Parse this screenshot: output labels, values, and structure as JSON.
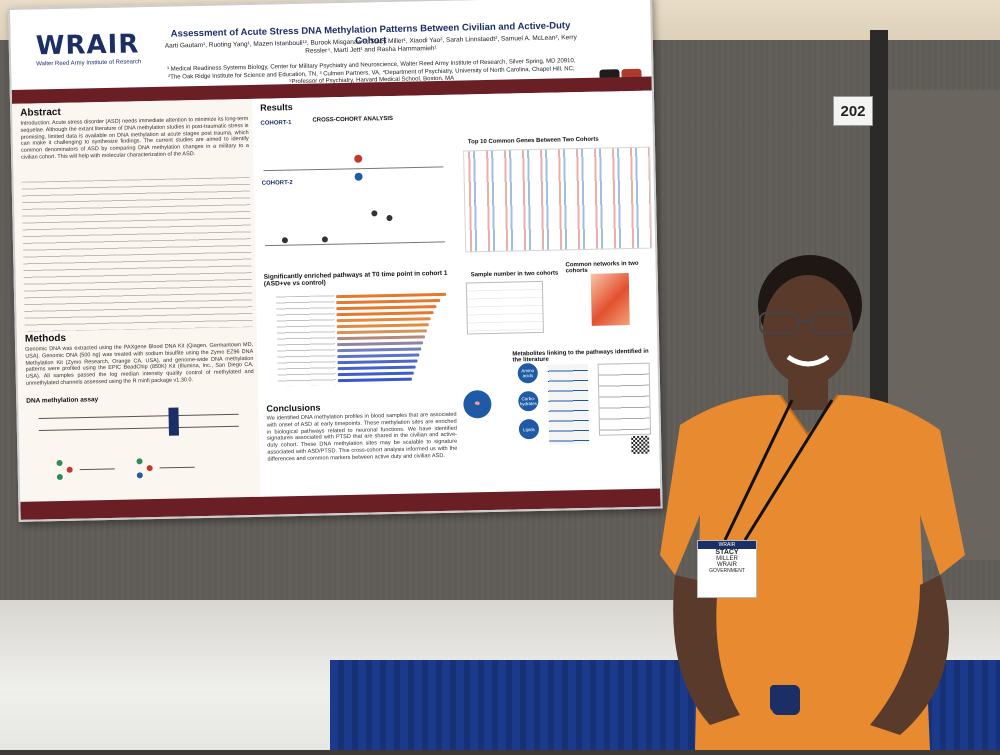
{
  "booth": {
    "number": "202"
  },
  "poster": {
    "logo": "WRAIR",
    "logo_subtitle": "Walter Reed Army Institute of Research",
    "title": "Assessment of Acute Stress DNA Methylation Patterns Between Civilian and Active-Duty Cohort",
    "authors": "Aarti Gautam¹, Ruoting Yang¹, Mazen Istanbouli¹², Burook Misganaw¹², Stacy Miller¹, Xiaodi Yao², Sarah Linnstaedt², Samuel A. McLean², Kerry Ressler⁴, Marti Jett¹ and Rasha Hammamieh¹",
    "affiliations": "¹ Medical Readiness Systems Biology, Center for Military Psychiatry and Neuroscience, Walter Reed Army Institute of Research, Silver Spring, MD 20910, ²The Oak Ridge Institute for Science and Education, TN, ³ Culmen Partners, VA, ⁴Department of Psychiatry, University of North Carolina, Chapel Hill, NC; ⁵Professor of Psychiatry, Harvard Medical School, Boston, MA",
    "sections": {
      "abstract": "Abstract",
      "methods": "Methods",
      "methylation_assay": "DNA methylation assay",
      "results": "Results",
      "cohort1": "COHORT-1",
      "cohort2": "COHORT-2",
      "cross_cohort": "CROSS-COHORT ANALYSIS",
      "top_genes": "Top 10 Common Genes Between Two Cohorts",
      "pathways": "Significantly enriched pathways at T0 time point in cohort 1 (ASD+ve vs control)",
      "sample_number": "Sample number in two cohorts",
      "networks": "Common networks in two cohorts",
      "metabolites": "Metabolites linking to the pathways identified in the literature",
      "conclusions": "Conclusions"
    },
    "abstract_text": "Introduction: Acute stress disorder (ASD) needs immediate attention to minimize its long-term sequelae. Although the extant literature of DNA methylation studies in post-traumatic stress is promising, limited data is available on DNA methylation at acute stages post trauma, which can make it challenging to synthesize findings. The current studies are aimed to identify common denominators of ASD by comparing DNA methylation changes in a military to a civilian cohort. This will help with molecular characterization of the ASD.",
    "methods_text": "Genomic DNA was extracted using the PAXgene Blood DNA Kit (Qiagen, Germantown MD, USA). Genomic DNA (500 ng) was treated with sodium bisulfite using the Zymo EZ96 DNA Methylation Kit (Zymo Research, Orange CA, USA), and genome-wide DNA methylation patterns were profiled using the EPIC BeadChip (850K) Kit (Illumina, Inc., San Diego CA, USA). All samples passed the log median intensity quality control of methylated and unmethylated channels assessed using the R minfi package v1.30.0.",
    "conclusions_text": "We identified DNA methylation profiles in blood samples that are associated with onset of ASD at early timepoints. These methylation sites are enriched in biological pathways related to neuronal functions. We have identified signatures associated with PTSD that are shared in the civilian and active-duty cohort. These DNA methylation sites may be scalable to signature associated with ASD/PTSD. This cross-cohort analysis informed us with the differences and common markers between active duty and civilian ASD."
  },
  "badge": {
    "first": "STACY",
    "last": "MILLER",
    "org": "WRAIR",
    "type": "GOVERNMENT"
  }
}
